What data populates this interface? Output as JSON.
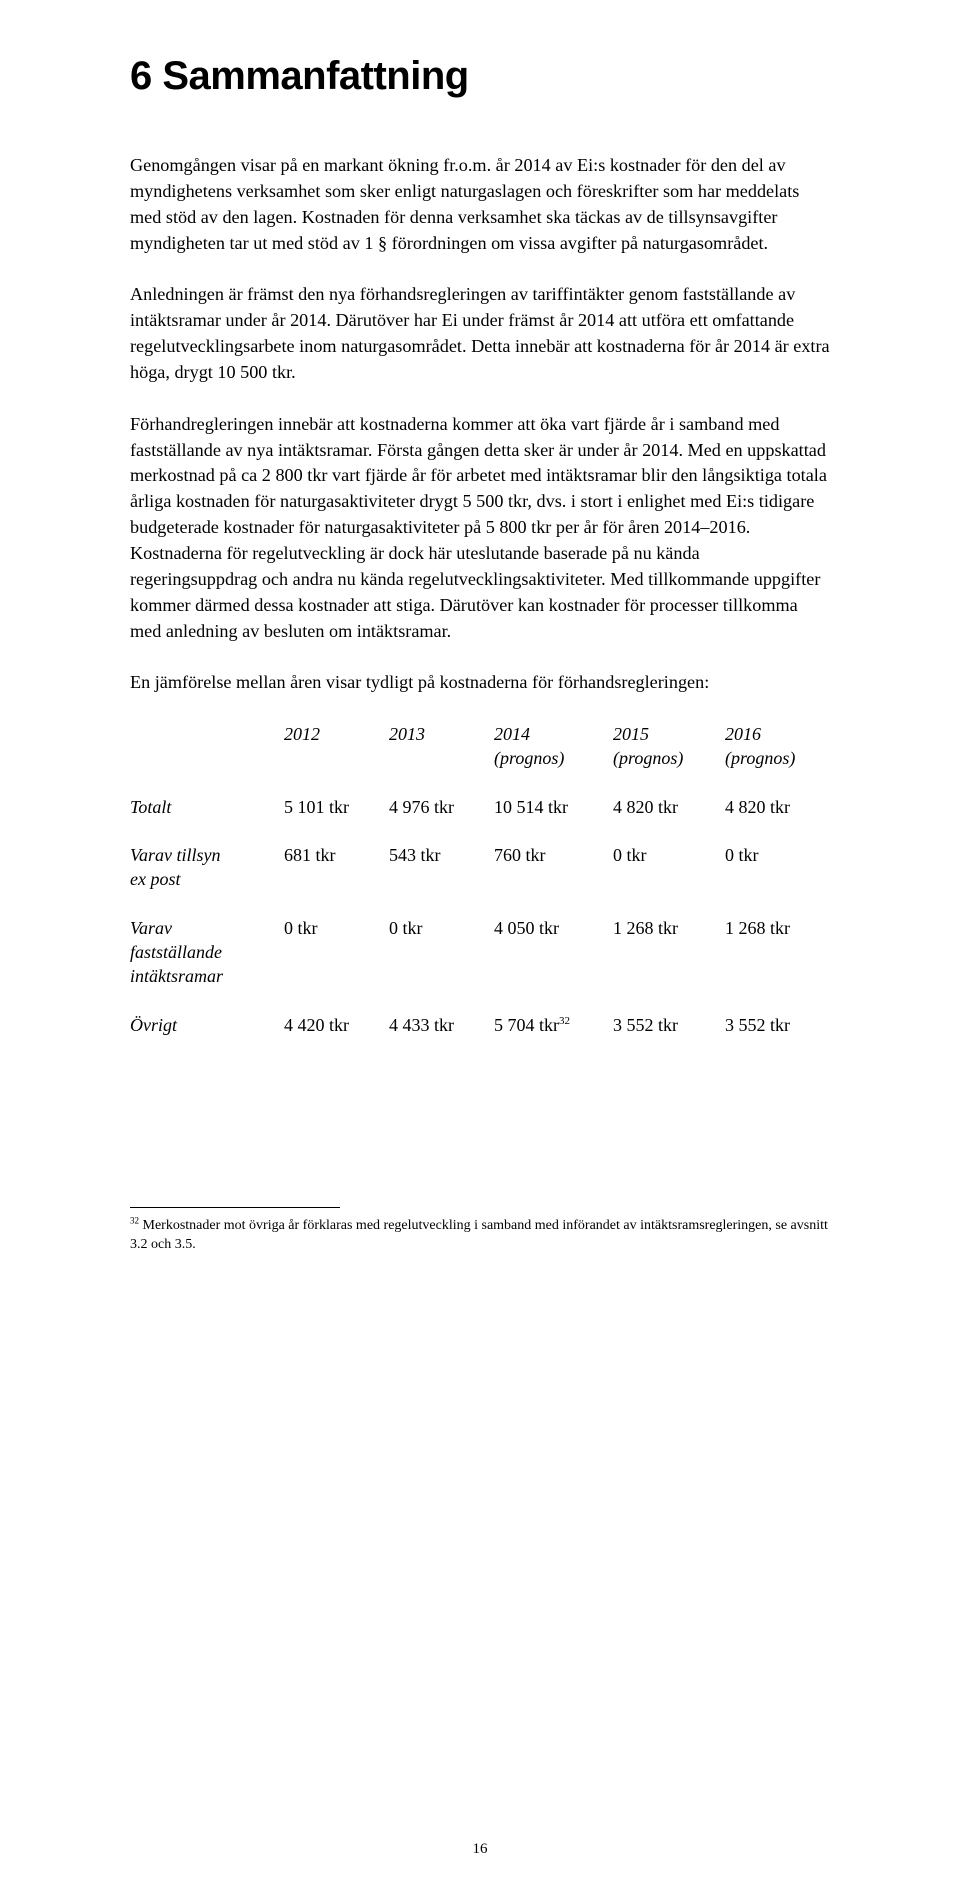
{
  "heading": "6 Sammanfattning",
  "paragraphs": {
    "p1": "Genomgången visar på en markant ökning fr.o.m. år 2014 av Ei:s kostnader för den del av myndighetens verksamhet som sker enligt naturgaslagen och föreskrifter som har meddelats med stöd av den lagen. Kostnaden för denna verksamhet ska täckas av de tillsynsavgifter myndigheten tar ut med stöd av 1 § förordningen om vissa avgifter på naturgasområdet.",
    "p2": "Anledningen är främst den nya förhandsregleringen av tariffintäkter genom fastställande av intäktsramar under år 2014. Därutöver har Ei under främst år 2014 att utföra ett omfattande regelutvecklingsarbete inom naturgasområdet. Detta innebär att kostnaderna för år 2014 är extra höga, drygt 10 500 tkr.",
    "p3": "Förhandregleringen innebär att kostnaderna kommer att öka vart fjärde år i samband med fastställande av nya intäktsramar. Första gången detta sker är under år 2014. Med en uppskattad merkostnad på ca 2 800 tkr vart fjärde år för arbetet med intäktsramar blir den långsiktiga totala årliga kostnaden för naturgas­aktiviteter drygt 5 500 tkr, dvs. i stort i enlighet med Ei:s tidigare budgeterade kostnader för naturgasaktiviteter på 5 800 tkr per år för åren 2014–2016. Kostnaderna för regelutveckling är dock här uteslutande baserade på nu kända regeringsuppdrag och andra nu kända regelutvecklingsaktiviteter. Med tillkommande uppgifter kommer därmed dessa kostnader att stiga. Därutöver kan kostnader för processer tillkomma med anledning av besluten om intäktsramar.",
    "p4": "En jämförelse mellan åren visar tydligt på kostnaderna för förhandsregleringen:"
  },
  "table": {
    "header": {
      "y2012": "2012",
      "y2013": "2013",
      "y2014a": "2014",
      "y2014b": "(prognos)",
      "y2015a": "2015",
      "y2015b": "(prognos)",
      "y2016a": "2016",
      "y2016b": "(prognos)"
    },
    "rows": {
      "totalt_label": "Totalt",
      "totalt": {
        "c1": "5 101 tkr",
        "c2": "4 976 tkr",
        "c3": "10 514 tkr",
        "c4": "4 820 tkr",
        "c5": "4 820 tkr"
      },
      "tillsyn_label_a": "Varav tillsyn",
      "tillsyn_label_b": "ex post",
      "tillsyn": {
        "c1": "681 tkr",
        "c2": "543 tkr",
        "c3": "760 tkr",
        "c4": "0 tkr",
        "c5": "0 tkr"
      },
      "varav_label_a": "Varav",
      "varav_label_b": "fastställande",
      "varav_label_c": "intäktsramar",
      "varav": {
        "c1": "0 tkr",
        "c2": "0 tkr",
        "c3": "4 050 tkr",
        "c4": "1 268 tkr",
        "c5": "1 268 tkr"
      },
      "ovrigt_label": "Övrigt",
      "ovrigt": {
        "c1": "4 420 tkr",
        "c2": "4 433 tkr",
        "c3a": "5 704 tkr",
        "c3_sup": "32",
        "c4": "3 552 tkr",
        "c5": "3 552 tkr"
      }
    }
  },
  "footnote": {
    "num": "32",
    "text": " Merkostnader mot övriga år förklaras med regelutveckling i samband med införandet av intäktsramsregleringen, se avsnitt 3.2 och 3.5."
  },
  "pagenum": "16"
}
